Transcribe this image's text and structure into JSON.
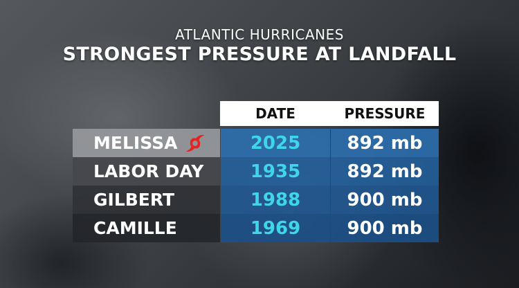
{
  "header": {
    "subtitle": "ATLANTIC HURRICANES",
    "title": "STRONGEST PRESSURE AT LANDFALL"
  },
  "table": {
    "columns": [
      "DATE",
      "PRESSURE"
    ],
    "rows": [
      {
        "name": "MELISSA",
        "date": "2025",
        "pressure": "892 mb",
        "icon": "hurricane-icon"
      },
      {
        "name": "LABOR DAY",
        "date": "1935",
        "pressure": "892 mb"
      },
      {
        "name": "GILBERT",
        "date": "1988",
        "pressure": "900 mb"
      },
      {
        "name": "CAMILLE",
        "date": "1969",
        "pressure": "900 mb"
      }
    ]
  },
  "colors": {
    "accent_date": "#3fd6ea",
    "cell_blue": "#2a6eac",
    "icon_red": "#e52421"
  }
}
